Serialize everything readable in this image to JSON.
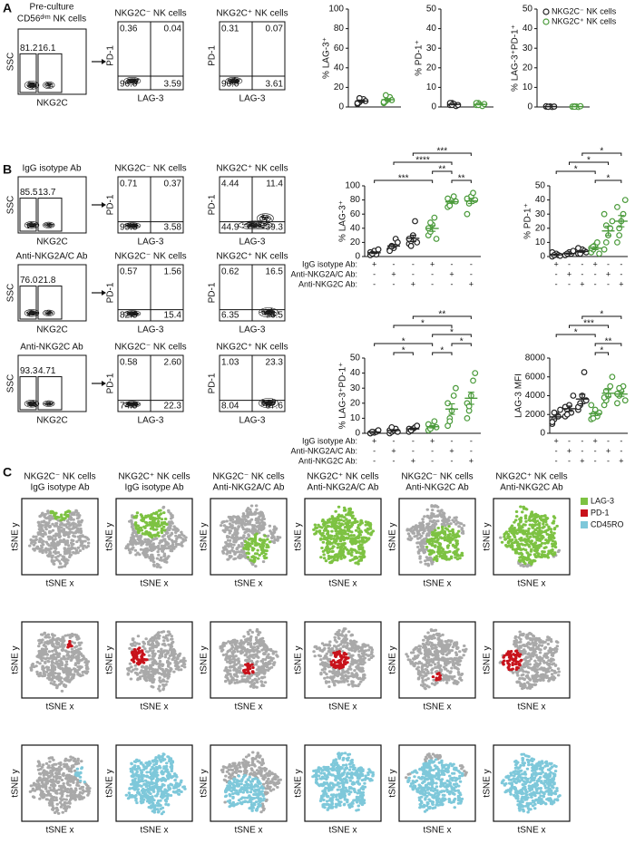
{
  "panel_labels": [
    "A",
    "B",
    "C"
  ],
  "flow": {
    "axis_labels": {
      "ssc": "SSC",
      "nkg2c": "NKG2C",
      "pd1": "PD-1",
      "lag3": "LAG-3"
    },
    "panel_a": {
      "title": "Pre-culture",
      "subtitle": "CD56ᵈⁱᵐ NK cells",
      "gates": [
        "81.2",
        "16.1"
      ],
      "plots": [
        {
          "title": "NKG2C⁻ NK cells",
          "quadrants": [
            "0.36",
            "0.04",
            "96.0",
            "3.59"
          ]
        },
        {
          "title": "NKG2C⁺ NK cells",
          "quadrants": [
            "0.31",
            "0.07",
            "96.0",
            "3.61"
          ]
        }
      ]
    },
    "panel_b": [
      {
        "title": "IgG isotype Ab",
        "gates": [
          "85.5",
          "13.7"
        ],
        "plots": [
          {
            "title": "NKG2C⁻ NK cells",
            "quadrants": [
              "0.71",
              "0.37",
              "95.3",
              "3.58"
            ]
          },
          {
            "title": "NKG2C⁺ NK cells",
            "quadrants": [
              "4.44",
              "11.4",
              "44.9",
              "39.3"
            ]
          }
        ]
      },
      {
        "title": "Anti-NKG2A/C Ab",
        "gates": [
          "76.0",
          "21.8"
        ],
        "plots": [
          {
            "title": "NKG2C⁻ NK cells",
            "quadrants": [
              "0.57",
              "1.56",
              "82.5",
              "15.4"
            ]
          },
          {
            "title": "NKG2C⁺ NK cells",
            "quadrants": [
              "0.62",
              "16.5",
              "6.35",
              "76.5"
            ]
          }
        ]
      },
      {
        "title": "Anti-NKG2C Ab",
        "gates": [
          "93.3",
          "4.71"
        ],
        "plots": [
          {
            "title": "NKG2C⁻ NK cells",
            "quadrants": [
              "0.58",
              "2.60",
              "74.5",
              "22.3"
            ]
          },
          {
            "title": "NKG2C⁺ NK cells",
            "quadrants": [
              "1.03",
              "23.3",
              "8.04",
              "67.6"
            ]
          }
        ]
      }
    ]
  },
  "chart_data": [
    {
      "type": "strip",
      "ylabel": "% LAG-3⁺",
      "ylim": [
        0,
        100
      ],
      "yticks": [
        0,
        20,
        40,
        60,
        80,
        100
      ],
      "series": [
        {
          "color": "#222222",
          "values": [
            [
              3,
              5,
              7,
              8,
              6,
              4,
              9
            ]
          ],
          "mean": [
            6
          ],
          "sem": [
            1
          ]
        },
        {
          "color": "#4a9a3a",
          "values": [
            [
              4,
              6,
              8,
              10,
              7,
              5,
              12
            ]
          ],
          "mean": [
            7.4
          ],
          "sem": [
            1.1
          ]
        }
      ]
    },
    {
      "type": "strip",
      "ylabel": "% PD-1⁺",
      "ylim": [
        0,
        50
      ],
      "yticks": [
        0,
        10,
        20,
        30,
        40,
        50
      ],
      "series": [
        {
          "color": "#222222",
          "values": [
            [
              1,
              2,
              1.5,
              0.5,
              1,
              2,
              1
            ]
          ],
          "mean": [
            1.3
          ],
          "sem": [
            0.2
          ]
        },
        {
          "color": "#4a9a3a",
          "values": [
            [
              1,
              2,
              1,
              0.5,
              1.5,
              2,
              1
            ]
          ],
          "mean": [
            1.3
          ],
          "sem": [
            0.2
          ]
        }
      ]
    },
    {
      "type": "strip",
      "ylabel": "% LAG-3⁺PD-1⁺",
      "ylim": [
        0,
        50
      ],
      "yticks": [
        0,
        10,
        20,
        30,
        40,
        50
      ],
      "legend": "upper left",
      "series": [
        {
          "name": "NKG2C⁻ NK cells",
          "color": "#222222",
          "values": [
            [
              0.2,
              0.1,
              0.3,
              0,
              0.2,
              0.4,
              0.1
            ]
          ],
          "mean": [
            0.2
          ],
          "sem": [
            0.05
          ]
        },
        {
          "name": "NKG2C⁺ NK cells",
          "color": "#4a9a3a",
          "values": [
            [
              0.1,
              0.3,
              0.2,
              0,
              0.4,
              0.2,
              0.1
            ]
          ],
          "mean": [
            0.2
          ],
          "sem": [
            0.05
          ]
        }
      ]
    },
    {
      "type": "strip",
      "ylabel": "% LAG-3⁺",
      "ylim": [
        0,
        100
      ],
      "yticks": [
        0,
        20,
        40,
        60,
        80,
        100
      ],
      "series": [
        {
          "color": "#222222",
          "values": [
            [
              2,
              5,
              8,
              3,
              10,
              6,
              4
            ],
            [
              10,
              15,
              12,
              25,
              20,
              8,
              14
            ],
            [
              18,
              22,
              30,
              50,
              20,
              25,
              15
            ]
          ],
          "mean": [
            5.4,
            14.9,
            25.7
          ],
          "sem": [
            1.1,
            2.2,
            4.4
          ]
        },
        {
          "color": "#4a9a3a",
          "values": [
            [
              30,
              35,
              45,
              55,
              25,
              40,
              48
            ],
            [
              70,
              75,
              80,
              85,
              78,
              82,
              72
            ],
            [
              60,
              78,
              85,
              90,
              80,
              82,
              75
            ]
          ],
          "mean": [
            39.7,
            77.4,
            78.6
          ],
          "sem": [
            4,
            2,
            3.6
          ]
        }
      ],
      "significance": [
        {
          "groups": [
            4,
            5
          ],
          "label": "**"
        },
        {
          "groups": [
            3,
            4
          ],
          "label": "**"
        },
        {
          "groups": [
            0,
            3
          ],
          "label": "***"
        },
        {
          "groups": [
            1,
            4
          ],
          "label": "****"
        },
        {
          "groups": [
            2,
            5
          ],
          "label": "***"
        }
      ],
      "conditions": [
        {
          "label": "IgG isotype Ab:",
          "signs": [
            "+",
            "-",
            "-",
            "+",
            "-",
            "-"
          ]
        },
        {
          "label": "Anti-NKG2A/C Ab:",
          "signs": [
            "-",
            "+",
            "-",
            "-",
            "+",
            "-"
          ]
        },
        {
          "label": "Anti-NKG2C Ab:",
          "signs": [
            "-",
            "-",
            "+",
            "-",
            "-",
            "+"
          ]
        }
      ]
    },
    {
      "type": "strip",
      "ylabel": "% PD-1⁺",
      "ylim": [
        0,
        50
      ],
      "yticks": [
        0,
        10,
        20,
        30,
        40,
        50
      ],
      "series": [
        {
          "color": "#222222",
          "values": [
            [
              0,
              1,
              2,
              1,
              0.5,
              3,
              1
            ],
            [
              1,
              2,
              3,
              2,
              4,
              1,
              2
            ],
            [
              2,
              3,
              5,
              4,
              3,
              6,
              2
            ]
          ],
          "mean": [
            1.2,
            2.1,
            3.6
          ],
          "sem": [
            0.4,
            0.4,
            0.6
          ]
        },
        {
          "color": "#4a9a3a",
          "values": [
            [
              3,
              5,
              8,
              10,
              2,
              6,
              7
            ],
            [
              5,
              10,
              15,
              20,
              25,
              30,
              22
            ],
            [
              10,
              15,
              25,
              30,
              40,
              35,
              20
            ]
          ],
          "mean": [
            5.9,
            18.1,
            25
          ],
          "sem": [
            1,
            3.3,
            4
          ]
        }
      ],
      "significance": [
        {
          "groups": [
            3,
            5
          ],
          "label": "*"
        },
        {
          "groups": [
            0,
            3
          ],
          "label": "*"
        },
        {
          "groups": [
            1,
            4
          ],
          "label": "*"
        },
        {
          "groups": [
            2,
            5
          ],
          "label": "*"
        }
      ],
      "conditions": [
        {
          "signs": [
            "+",
            "-",
            "-",
            "+",
            "-",
            "-"
          ]
        },
        {
          "signs": [
            "-",
            "+",
            "-",
            "-",
            "+",
            "-"
          ]
        },
        {
          "signs": [
            "-",
            "-",
            "+",
            "-",
            "-",
            "+"
          ]
        }
      ]
    },
    {
      "type": "strip",
      "ylabel": "% LAG-3⁺PD-1⁺",
      "ylim": [
        0,
        50
      ],
      "yticks": [
        0,
        10,
        20,
        30,
        40,
        50
      ],
      "series": [
        {
          "color": "#222222",
          "values": [
            [
              0,
              1,
              0.5,
              1,
              2,
              0,
              1
            ],
            [
              0,
              1,
              2,
              3,
              1,
              2,
              4
            ],
            [
              1,
              2,
              3,
              4,
              5,
              3,
              2
            ]
          ],
          "mean": [
            0.8,
            1.9,
            2.9
          ],
          "sem": [
            0.3,
            0.5,
            0.5
          ]
        },
        {
          "color": "#4a9a3a",
          "values": [
            [
              2,
              3,
              5,
              8,
              4,
              6,
              3
            ],
            [
              5,
              10,
              15,
              25,
              30,
              20,
              8
            ],
            [
              10,
              15,
              25,
              35,
              40,
              20,
              18
            ]
          ],
          "mean": [
            4.4,
            16.1,
            23.3
          ],
          "sem": [
            0.8,
            3.5,
            4
          ]
        }
      ],
      "significance": [
        {
          "groups": [
            1,
            2
          ],
          "label": "*"
        },
        {
          "groups": [
            3,
            4
          ],
          "label": "*"
        },
        {
          "groups": [
            4,
            5
          ],
          "label": "*"
        },
        {
          "groups": [
            3,
            5
          ],
          "label": "*"
        },
        {
          "groups": [
            0,
            3
          ],
          "label": "*"
        },
        {
          "groups": [
            1,
            4
          ],
          "label": "*"
        },
        {
          "groups": [
            2,
            5
          ],
          "label": "**"
        }
      ],
      "conditions": [
        {
          "label": "IgG isotype Ab:",
          "signs": [
            "+",
            "-",
            "-",
            "+",
            "-",
            "-"
          ]
        },
        {
          "label": "Anti-NKG2A/C Ab:",
          "signs": [
            "-",
            "+",
            "-",
            "-",
            "+",
            "-"
          ]
        },
        {
          "label": "Anti-NKG2C Ab:",
          "signs": [
            "-",
            "-",
            "+",
            "-",
            "-",
            "+"
          ]
        }
      ]
    },
    {
      "type": "strip",
      "ylabel": "LAG-3 MFI",
      "ylim": [
        0,
        8000
      ],
      "yticks": [
        0,
        2000,
        4000,
        6000,
        8000
      ],
      "series": [
        {
          "color": "#222222",
          "values": [
            [
              1000,
              1500,
              2000,
              1800,
              2500,
              1200,
              2200
            ],
            [
              1800,
              2500,
              3000,
              2200,
              4000,
              2800,
              2000
            ],
            [
              2500,
              3000,
              4000,
              6500,
              3500,
              2800,
              3200
            ]
          ],
          "mean": [
            1743,
            2614,
            3643
          ],
          "sem": [
            200,
            280,
            500
          ]
        },
        {
          "color": "#4a9a3a",
          "values": [
            [
              1500,
              2000,
              2500,
              1800,
              2200,
              3000,
              1600
            ],
            [
              3000,
              3500,
              4000,
              5000,
              6000,
              3800,
              4500
            ],
            [
              3200,
              4000,
              4500,
              5000,
              3500,
              4200,
              4800
            ]
          ],
          "mean": [
            2086,
            4257,
            4171
          ],
          "sem": [
            200,
            380,
            240
          ]
        }
      ],
      "significance": [
        {
          "groups": [
            3,
            4
          ],
          "label": "*"
        },
        {
          "groups": [
            3,
            5
          ],
          "label": "**"
        },
        {
          "groups": [
            0,
            3
          ],
          "label": "*"
        },
        {
          "groups": [
            1,
            4
          ],
          "label": "***"
        },
        {
          "groups": [
            2,
            5
          ],
          "label": "*"
        }
      ],
      "conditions": [
        {
          "signs": [
            "+",
            "-",
            "-",
            "+",
            "-",
            "-"
          ]
        },
        {
          "signs": [
            "-",
            "+",
            "-",
            "-",
            "+",
            "-"
          ]
        },
        {
          "signs": [
            "-",
            "-",
            "+",
            "-",
            "-",
            "+"
          ]
        }
      ]
    }
  ],
  "tsne": {
    "axis_labels": {
      "x": "tSNE x",
      "y": "tSNE y"
    },
    "columns": [
      [
        "NKG2C⁻ NK cells",
        "IgG isotype Ab"
      ],
      [
        "NKG2C⁺ NK cells",
        "IgG isotype Ab"
      ],
      [
        "NKG2C⁻ NK cells",
        "Anti-NKG2A/C Ab"
      ],
      [
        "NKG2C⁺ NK cells",
        "Anti-NKG2A/C Ab"
      ],
      [
        "NKG2C⁻ NK cells",
        "Anti-NKG2C Ab"
      ],
      [
        "NKG2C⁺ NK cells",
        "Anti-NKG2C Ab"
      ]
    ],
    "legend": [
      {
        "label": "LAG-3",
        "color": "#7dc242"
      },
      {
        "label": "PD-1",
        "color": "#c8121b"
      },
      {
        "label": "CD45RO",
        "color": "#7ec8da"
      }
    ]
  }
}
